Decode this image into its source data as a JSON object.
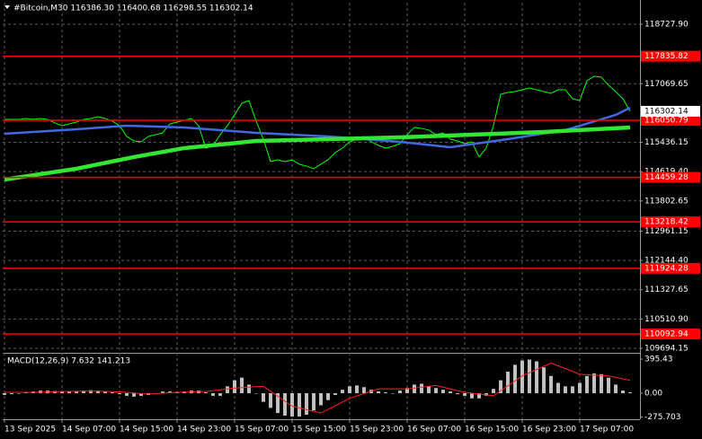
{
  "chart_data": [
    {
      "type": "line",
      "title": "#Bitcoin,M30  116386.30 116400.68 116298.55 116302.14",
      "xlim": [
        -0.25,
        88.375
      ],
      "xticks": [
        {
          "value": 0,
          "label": "13 Sep 2025"
        },
        {
          "value": 8,
          "label": "14 Sep 07:00"
        },
        {
          "value": 16,
          "label": "14 Sep 15:00"
        },
        {
          "value": 24,
          "label": "14 Sep 23:00"
        },
        {
          "value": 32,
          "label": "15 Sep 07:00"
        },
        {
          "value": 40,
          "label": "15 Sep 15:00"
        },
        {
          "value": 48,
          "label": "15 Sep 23:00"
        },
        {
          "value": 56,
          "label": "16 Sep 07:00"
        },
        {
          "value": 64,
          "label": "16 Sep 15:00"
        },
        {
          "value": 72,
          "label": "16 Sep 23:00"
        },
        {
          "value": 80,
          "label": "17 Sep 07:00"
        }
      ],
      "ylim": [
        109569,
        119328
      ],
      "yticks": [
        {
          "value": 118727.9,
          "label": "118727.90"
        },
        {
          "value": 117069.65,
          "label": "117069.65"
        },
        {
          "value": 115436.15,
          "label": "115436.15"
        },
        {
          "value": 114619.4,
          "label": "114619.40"
        },
        {
          "value": 113802.65,
          "label": "113802.65"
        },
        {
          "value": 112961.15,
          "label": "112961.15"
        },
        {
          "value": 112144.4,
          "label": "112144.40"
        },
        {
          "value": 111327.65,
          "label": "111327.65"
        },
        {
          "value": 110510.9,
          "label": "110510.90"
        },
        {
          "value": 109694.15,
          "label": "109694.15"
        }
      ],
      "grid": true,
      "series": [
        {
          "color": "#00ff00",
          "width": 1,
          "x": [
            0,
            1,
            2,
            3,
            4,
            5,
            6,
            7,
            8,
            9,
            10,
            11,
            12,
            13,
            14,
            15,
            16,
            17,
            18,
            19,
            20,
            21,
            22,
            23,
            24,
            25,
            26,
            27,
            28,
            29,
            30,
            31,
            32,
            33,
            34,
            35,
            36,
            37,
            38,
            39,
            40,
            41,
            42,
            43,
            44,
            45,
            46,
            47,
            48,
            49,
            50,
            51,
            52,
            53,
            54,
            55,
            56,
            57,
            58,
            59,
            60,
            61,
            62,
            63,
            64,
            65,
            66,
            67,
            68,
            69,
            70,
            71,
            72,
            73,
            74,
            75,
            76,
            77,
            78,
            79,
            80,
            81,
            82,
            83,
            84,
            85,
            86,
            87
          ],
          "values": [
            116076,
            116076,
            116076,
            116101,
            116076,
            116101,
            116076,
            115976,
            115901,
            115951,
            116001,
            116076,
            116101,
            116151,
            116101,
            116026,
            115901,
            115600,
            115475,
            115450,
            115600,
            115650,
            115700,
            115951,
            116001,
            116051,
            116101,
            115901,
            115275,
            115350,
            115650,
            115901,
            116201,
            116526,
            116601,
            116026,
            115525,
            114900,
            114950,
            114900,
            114950,
            114825,
            114775,
            114700,
            114825,
            114950,
            115150,
            115275,
            115450,
            115525,
            115600,
            115450,
            115350,
            115275,
            115325,
            115400,
            115650,
            115851,
            115826,
            115776,
            115650,
            115700,
            115525,
            115475,
            115400,
            115450,
            115025,
            115275,
            115901,
            116776,
            116826,
            116851,
            116901,
            116951,
            116901,
            116851,
            116801,
            116901,
            116901,
            116651,
            116601,
            117152,
            117277,
            117252,
            117027,
            116851,
            116651,
            116302
          ]
        },
        {
          "color": "#4169e1",
          "width": 2.5,
          "x": [
            0,
            10,
            17,
            25,
            35,
            45,
            55,
            62,
            70,
            78,
            85,
            87
          ],
          "values": [
            115676,
            115801,
            115901,
            115851,
            115701,
            115600,
            115450,
            115300,
            115525,
            115776,
            116201,
            116401
          ]
        },
        {
          "color": "#32e632",
          "width": 4.5,
          "x": [
            0,
            10,
            18,
            25,
            35,
            45,
            55,
            65,
            75,
            87
          ],
          "values": [
            114399,
            114700,
            115025,
            115275,
            115475,
            115525,
            115575,
            115650,
            115726,
            115851
          ]
        }
      ],
      "levels": {
        "color": "#ff0000",
        "values": [
          117835.82,
          116050.79,
          114459.28,
          113218.42,
          111924.28,
          110092.94
        ]
      },
      "last_price": 116302.14
    },
    {
      "type": "macd",
      "title": "MACD(12,26,9) 7.632 141.213",
      "xlim": [
        -0.25,
        88.375
      ],
      "ylim": [
        -302,
        447.5
      ],
      "yticks": [
        395.43,
        {
          "value": 0,
          "label": "0.00"
        },
        -275.703
      ],
      "series": [
        {
          "type": "bar",
          "color": "#c0c0c0",
          "x": [
            0,
            1,
            2,
            3,
            4,
            5,
            6,
            7,
            8,
            9,
            10,
            11,
            12,
            13,
            14,
            15,
            16,
            17,
            18,
            19,
            20,
            21,
            22,
            23,
            24,
            25,
            26,
            27,
            28,
            29,
            30,
            31,
            32,
            33,
            34,
            35,
            36,
            37,
            38,
            39,
            40,
            41,
            42,
            43,
            44,
            45,
            46,
            47,
            48,
            49,
            50,
            51,
            52,
            53,
            54,
            55,
            56,
            57,
            58,
            59,
            60,
            61,
            62,
            63,
            64,
            65,
            66,
            67,
            68,
            69,
            70,
            71,
            72,
            73,
            74,
            75,
            76,
            77,
            78,
            79,
            80,
            81,
            82,
            83,
            84,
            85,
            86,
            87
          ],
          "values": [
            -20,
            -10,
            0,
            10,
            20,
            30,
            30,
            25,
            20,
            15,
            20,
            30,
            35,
            30,
            20,
            10,
            -10,
            -30,
            -40,
            -30,
            -20,
            0,
            20,
            20,
            10,
            20,
            30,
            30,
            10,
            -30,
            -30,
            80,
            150,
            180,
            100,
            0,
            -100,
            -170,
            -230,
            -260,
            -270,
            -270,
            -250,
            -200,
            -140,
            -80,
            -20,
            40,
            80,
            90,
            70,
            40,
            20,
            10,
            0,
            30,
            60,
            100,
            110,
            80,
            60,
            40,
            20,
            -10,
            -30,
            -60,
            -60,
            -30,
            50,
            150,
            250,
            330,
            380,
            390,
            370,
            300,
            200,
            120,
            80,
            80,
            120,
            200,
            230,
            220,
            180,
            100,
            30,
            10
          ]
        },
        {
          "type": "line",
          "color": "#ff2020",
          "x": [
            0,
            4,
            8,
            12,
            16,
            20,
            24,
            28,
            32,
            36,
            40,
            44,
            48,
            52,
            56,
            60,
            64,
            68,
            72,
            76,
            80,
            84,
            87
          ],
          "values": [
            10,
            10,
            20,
            25,
            15,
            -10,
            10,
            20,
            60,
            80,
            -150,
            -230,
            -60,
            50,
            50,
            90,
            10,
            -30,
            200,
            350,
            220,
            200,
            150
          ]
        }
      ]
    }
  ]
}
